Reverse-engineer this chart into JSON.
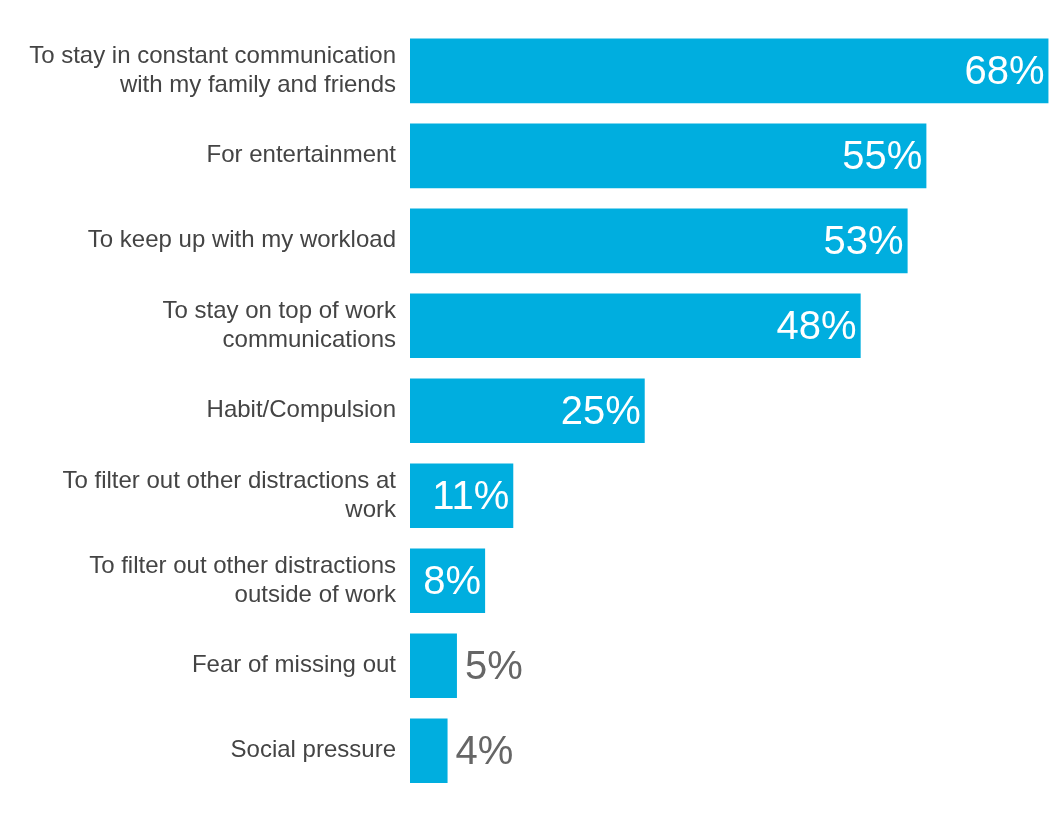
{
  "chart_data": {
    "type": "bar",
    "orientation": "horizontal",
    "categories": [
      "To stay in constant communication with my family and friends",
      "For entertainment",
      "To keep up with my workload",
      "To stay on top of work communications",
      "Habit/Compulsion",
      "To filter out other distractions at work",
      "To filter out other distractions outside of work",
      "Fear of missing out",
      "Social pressure"
    ],
    "values": [
      68,
      55,
      53,
      48,
      25,
      11,
      8,
      5,
      4
    ],
    "value_labels": [
      "68%",
      "55%",
      "53%",
      "48%",
      "25%",
      "11%",
      "8%",
      "5%",
      "4%"
    ],
    "color": "#00aedf",
    "grid": false,
    "legend": false
  }
}
